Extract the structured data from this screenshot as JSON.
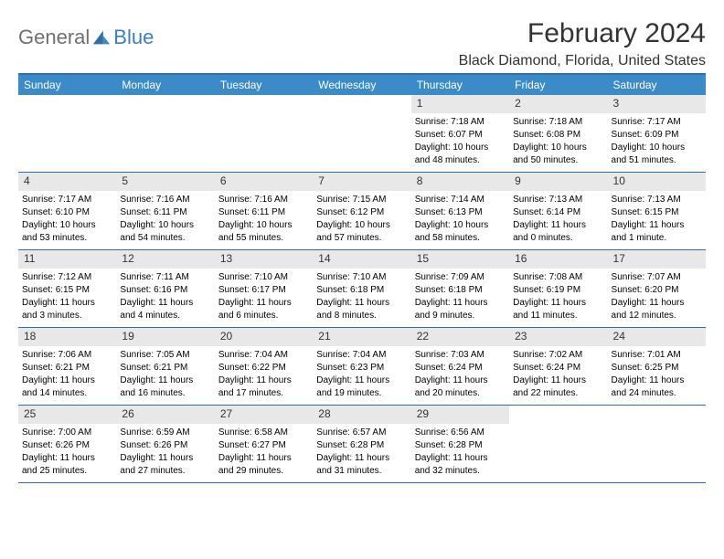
{
  "logo": {
    "general": "General",
    "blue": "Blue"
  },
  "header": {
    "month_title": "February 2024",
    "location": "Black Diamond, Florida, United States"
  },
  "colors": {
    "header_bar": "#3b8bc9",
    "border": "#2f6fa6",
    "daynum_bg": "#e8e8e8",
    "logo_gray": "#6f6f6f",
    "logo_blue": "#3b7fbf"
  },
  "dow": [
    "Sunday",
    "Monday",
    "Tuesday",
    "Wednesday",
    "Thursday",
    "Friday",
    "Saturday"
  ],
  "weeks": [
    [
      {
        "empty": true
      },
      {
        "empty": true
      },
      {
        "empty": true
      },
      {
        "empty": true
      },
      {
        "n": "1",
        "sr": "Sunrise: 7:18 AM",
        "ss": "Sunset: 6:07 PM",
        "d1": "Daylight: 10 hours",
        "d2": "and 48 minutes."
      },
      {
        "n": "2",
        "sr": "Sunrise: 7:18 AM",
        "ss": "Sunset: 6:08 PM",
        "d1": "Daylight: 10 hours",
        "d2": "and 50 minutes."
      },
      {
        "n": "3",
        "sr": "Sunrise: 7:17 AM",
        "ss": "Sunset: 6:09 PM",
        "d1": "Daylight: 10 hours",
        "d2": "and 51 minutes."
      }
    ],
    [
      {
        "n": "4",
        "sr": "Sunrise: 7:17 AM",
        "ss": "Sunset: 6:10 PM",
        "d1": "Daylight: 10 hours",
        "d2": "and 53 minutes."
      },
      {
        "n": "5",
        "sr": "Sunrise: 7:16 AM",
        "ss": "Sunset: 6:11 PM",
        "d1": "Daylight: 10 hours",
        "d2": "and 54 minutes."
      },
      {
        "n": "6",
        "sr": "Sunrise: 7:16 AM",
        "ss": "Sunset: 6:11 PM",
        "d1": "Daylight: 10 hours",
        "d2": "and 55 minutes."
      },
      {
        "n": "7",
        "sr": "Sunrise: 7:15 AM",
        "ss": "Sunset: 6:12 PM",
        "d1": "Daylight: 10 hours",
        "d2": "and 57 minutes."
      },
      {
        "n": "8",
        "sr": "Sunrise: 7:14 AM",
        "ss": "Sunset: 6:13 PM",
        "d1": "Daylight: 10 hours",
        "d2": "and 58 minutes."
      },
      {
        "n": "9",
        "sr": "Sunrise: 7:13 AM",
        "ss": "Sunset: 6:14 PM",
        "d1": "Daylight: 11 hours",
        "d2": "and 0 minutes."
      },
      {
        "n": "10",
        "sr": "Sunrise: 7:13 AM",
        "ss": "Sunset: 6:15 PM",
        "d1": "Daylight: 11 hours",
        "d2": "and 1 minute."
      }
    ],
    [
      {
        "n": "11",
        "sr": "Sunrise: 7:12 AM",
        "ss": "Sunset: 6:15 PM",
        "d1": "Daylight: 11 hours",
        "d2": "and 3 minutes."
      },
      {
        "n": "12",
        "sr": "Sunrise: 7:11 AM",
        "ss": "Sunset: 6:16 PM",
        "d1": "Daylight: 11 hours",
        "d2": "and 4 minutes."
      },
      {
        "n": "13",
        "sr": "Sunrise: 7:10 AM",
        "ss": "Sunset: 6:17 PM",
        "d1": "Daylight: 11 hours",
        "d2": "and 6 minutes."
      },
      {
        "n": "14",
        "sr": "Sunrise: 7:10 AM",
        "ss": "Sunset: 6:18 PM",
        "d1": "Daylight: 11 hours",
        "d2": "and 8 minutes."
      },
      {
        "n": "15",
        "sr": "Sunrise: 7:09 AM",
        "ss": "Sunset: 6:18 PM",
        "d1": "Daylight: 11 hours",
        "d2": "and 9 minutes."
      },
      {
        "n": "16",
        "sr": "Sunrise: 7:08 AM",
        "ss": "Sunset: 6:19 PM",
        "d1": "Daylight: 11 hours",
        "d2": "and 11 minutes."
      },
      {
        "n": "17",
        "sr": "Sunrise: 7:07 AM",
        "ss": "Sunset: 6:20 PM",
        "d1": "Daylight: 11 hours",
        "d2": "and 12 minutes."
      }
    ],
    [
      {
        "n": "18",
        "sr": "Sunrise: 7:06 AM",
        "ss": "Sunset: 6:21 PM",
        "d1": "Daylight: 11 hours",
        "d2": "and 14 minutes."
      },
      {
        "n": "19",
        "sr": "Sunrise: 7:05 AM",
        "ss": "Sunset: 6:21 PM",
        "d1": "Daylight: 11 hours",
        "d2": "and 16 minutes."
      },
      {
        "n": "20",
        "sr": "Sunrise: 7:04 AM",
        "ss": "Sunset: 6:22 PM",
        "d1": "Daylight: 11 hours",
        "d2": "and 17 minutes."
      },
      {
        "n": "21",
        "sr": "Sunrise: 7:04 AM",
        "ss": "Sunset: 6:23 PM",
        "d1": "Daylight: 11 hours",
        "d2": "and 19 minutes."
      },
      {
        "n": "22",
        "sr": "Sunrise: 7:03 AM",
        "ss": "Sunset: 6:24 PM",
        "d1": "Daylight: 11 hours",
        "d2": "and 20 minutes."
      },
      {
        "n": "23",
        "sr": "Sunrise: 7:02 AM",
        "ss": "Sunset: 6:24 PM",
        "d1": "Daylight: 11 hours",
        "d2": "and 22 minutes."
      },
      {
        "n": "24",
        "sr": "Sunrise: 7:01 AM",
        "ss": "Sunset: 6:25 PM",
        "d1": "Daylight: 11 hours",
        "d2": "and 24 minutes."
      }
    ],
    [
      {
        "n": "25",
        "sr": "Sunrise: 7:00 AM",
        "ss": "Sunset: 6:26 PM",
        "d1": "Daylight: 11 hours",
        "d2": "and 25 minutes."
      },
      {
        "n": "26",
        "sr": "Sunrise: 6:59 AM",
        "ss": "Sunset: 6:26 PM",
        "d1": "Daylight: 11 hours",
        "d2": "and 27 minutes."
      },
      {
        "n": "27",
        "sr": "Sunrise: 6:58 AM",
        "ss": "Sunset: 6:27 PM",
        "d1": "Daylight: 11 hours",
        "d2": "and 29 minutes."
      },
      {
        "n": "28",
        "sr": "Sunrise: 6:57 AM",
        "ss": "Sunset: 6:28 PM",
        "d1": "Daylight: 11 hours",
        "d2": "and 31 minutes."
      },
      {
        "n": "29",
        "sr": "Sunrise: 6:56 AM",
        "ss": "Sunset: 6:28 PM",
        "d1": "Daylight: 11 hours",
        "d2": "and 32 minutes."
      },
      {
        "empty": true
      },
      {
        "empty": true
      }
    ]
  ]
}
